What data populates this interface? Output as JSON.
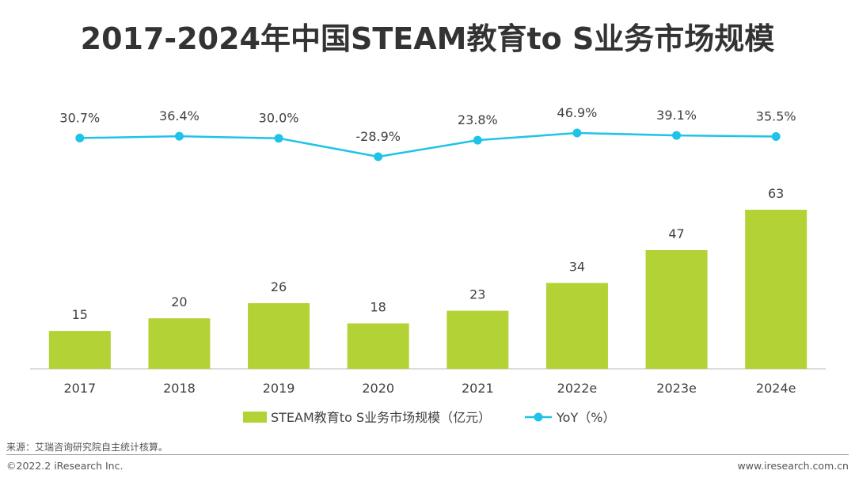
{
  "title": "2017-2024年中国STEAM教育to S业务市场规模",
  "chart_data": {
    "type": "bar+line",
    "title": "2017-2024年中国STEAM教育to S业务市场规模",
    "categories": [
      "2017",
      "2018",
      "2019",
      "2020",
      "2021",
      "2022e",
      "2023e",
      "2024e"
    ],
    "series": [
      {
        "name": "STEAM教育to S业务市场规模（亿元）",
        "type": "bar",
        "values": [
          15,
          20,
          26,
          18,
          23,
          34,
          47,
          63
        ],
        "labels": [
          "15",
          "20",
          "26",
          "18",
          "23",
          "34",
          "47",
          "63"
        ],
        "color": "#b2d235"
      },
      {
        "name": "YoY（%）",
        "type": "line",
        "values": [
          30.7,
          36.4,
          30.0,
          -28.9,
          23.8,
          46.9,
          39.1,
          35.5
        ],
        "labels": [
          "30.7%",
          "36.4%",
          "30.0%",
          "-28.9%",
          "23.8%",
          "46.9%",
          "39.1%",
          "35.5%"
        ],
        "color": "#1fc3e8"
      }
    ],
    "ylim": [
      0,
      63
    ],
    "xlabel": "",
    "ylabel": "",
    "legend": "bottom"
  },
  "footer": {
    "source": "来源：艾瑞咨询研究院自主统计核算。",
    "copyright": "©2022.2 iResearch Inc.",
    "website": "www.iresearch.com.cn"
  }
}
